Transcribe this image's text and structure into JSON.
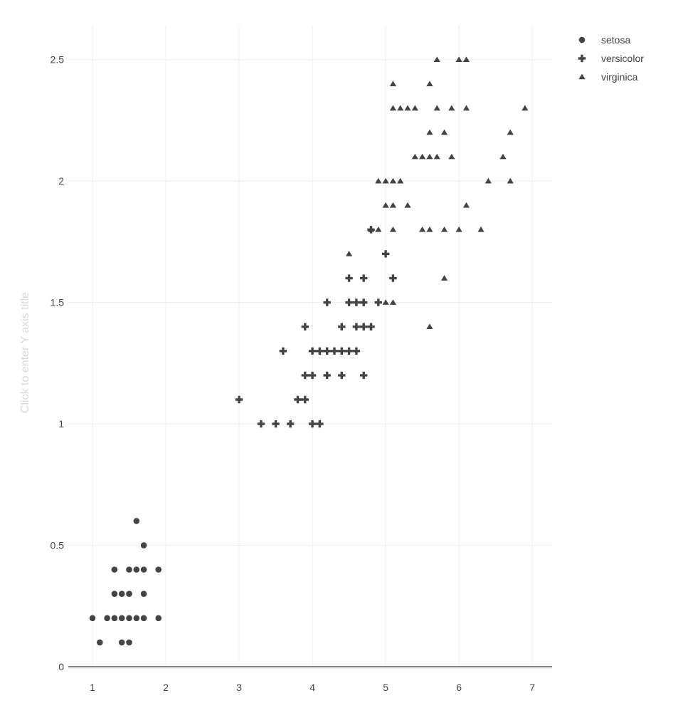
{
  "chart_data": {
    "type": "scatter",
    "title": "",
    "xlabel": "",
    "ylabel": "Click to enter Y axis title",
    "xlim": [
      0.67,
      7.27
    ],
    "ylim": [
      0,
      2.64
    ],
    "x_ticks": [
      1,
      2,
      3,
      4,
      5,
      6,
      7
    ],
    "y_ticks": [
      0,
      0.5,
      1,
      1.5,
      2,
      2.5
    ],
    "y_tick_labels": [
      "0",
      "0.5",
      "1",
      "1.5",
      "2",
      "2.5"
    ],
    "grid": true,
    "legend_position": "top-right",
    "series": [
      {
        "name": "setosa",
        "marker": "circle",
        "color": "#444444",
        "points": [
          [
            1.0,
            0.2
          ],
          [
            1.1,
            0.1
          ],
          [
            1.2,
            0.2
          ],
          [
            1.3,
            0.2
          ],
          [
            1.3,
            0.3
          ],
          [
            1.3,
            0.4
          ],
          [
            1.4,
            0.1
          ],
          [
            1.4,
            0.2
          ],
          [
            1.4,
            0.3
          ],
          [
            1.5,
            0.1
          ],
          [
            1.5,
            0.2
          ],
          [
            1.5,
            0.3
          ],
          [
            1.5,
            0.4
          ],
          [
            1.6,
            0.2
          ],
          [
            1.6,
            0.4
          ],
          [
            1.6,
            0.6
          ],
          [
            1.7,
            0.2
          ],
          [
            1.7,
            0.3
          ],
          [
            1.7,
            0.4
          ],
          [
            1.7,
            0.5
          ],
          [
            1.9,
            0.2
          ],
          [
            1.9,
            0.4
          ]
        ]
      },
      {
        "name": "versicolor",
        "marker": "cross",
        "color": "#444444",
        "points": [
          [
            3.0,
            1.1
          ],
          [
            3.3,
            1.0
          ],
          [
            3.5,
            1.0
          ],
          [
            3.6,
            1.3
          ],
          [
            3.7,
            1.0
          ],
          [
            3.8,
            1.1
          ],
          [
            3.9,
            1.1
          ],
          [
            3.9,
            1.2
          ],
          [
            3.9,
            1.4
          ],
          [
            4.0,
            1.0
          ],
          [
            4.0,
            1.2
          ],
          [
            4.0,
            1.3
          ],
          [
            4.1,
            1.0
          ],
          [
            4.1,
            1.3
          ],
          [
            4.2,
            1.2
          ],
          [
            4.2,
            1.3
          ],
          [
            4.2,
            1.5
          ],
          [
            4.3,
            1.3
          ],
          [
            4.4,
            1.2
          ],
          [
            4.4,
            1.3
          ],
          [
            4.4,
            1.4
          ],
          [
            4.5,
            1.3
          ],
          [
            4.5,
            1.5
          ],
          [
            4.5,
            1.6
          ],
          [
            4.6,
            1.3
          ],
          [
            4.6,
            1.4
          ],
          [
            4.6,
            1.5
          ],
          [
            4.7,
            1.2
          ],
          [
            4.7,
            1.4
          ],
          [
            4.7,
            1.5
          ],
          [
            4.7,
            1.6
          ],
          [
            4.8,
            1.4
          ],
          [
            4.8,
            1.8
          ],
          [
            4.9,
            1.5
          ],
          [
            5.0,
            1.7
          ],
          [
            5.1,
            1.6
          ]
        ]
      },
      {
        "name": "virginica",
        "marker": "triangle-up",
        "color": "#444444",
        "points": [
          [
            4.5,
            1.7
          ],
          [
            4.8,
            1.8
          ],
          [
            4.9,
            1.8
          ],
          [
            4.9,
            2.0
          ],
          [
            5.0,
            1.5
          ],
          [
            5.0,
            1.9
          ],
          [
            5.0,
            2.0
          ],
          [
            5.1,
            1.5
          ],
          [
            5.1,
            1.8
          ],
          [
            5.1,
            1.9
          ],
          [
            5.1,
            2.0
          ],
          [
            5.1,
            2.3
          ],
          [
            5.1,
            2.4
          ],
          [
            5.2,
            2.0
          ],
          [
            5.2,
            2.3
          ],
          [
            5.3,
            1.9
          ],
          [
            5.3,
            2.3
          ],
          [
            5.4,
            2.1
          ],
          [
            5.4,
            2.3
          ],
          [
            5.5,
            1.8
          ],
          [
            5.5,
            2.1
          ],
          [
            5.6,
            1.4
          ],
          [
            5.6,
            1.8
          ],
          [
            5.6,
            2.1
          ],
          [
            5.6,
            2.2
          ],
          [
            5.6,
            2.4
          ],
          [
            5.7,
            2.1
          ],
          [
            5.7,
            2.3
          ],
          [
            5.7,
            2.5
          ],
          [
            5.8,
            1.6
          ],
          [
            5.8,
            1.8
          ],
          [
            5.8,
            2.2
          ],
          [
            5.9,
            2.1
          ],
          [
            5.9,
            2.3
          ],
          [
            6.0,
            1.8
          ],
          [
            6.0,
            2.5
          ],
          [
            6.1,
            1.9
          ],
          [
            6.1,
            2.3
          ],
          [
            6.1,
            2.5
          ],
          [
            6.3,
            1.8
          ],
          [
            6.4,
            2.0
          ],
          [
            6.6,
            2.1
          ],
          [
            6.7,
            2.0
          ],
          [
            6.7,
            2.2
          ],
          [
            6.9,
            2.3
          ]
        ]
      }
    ]
  }
}
